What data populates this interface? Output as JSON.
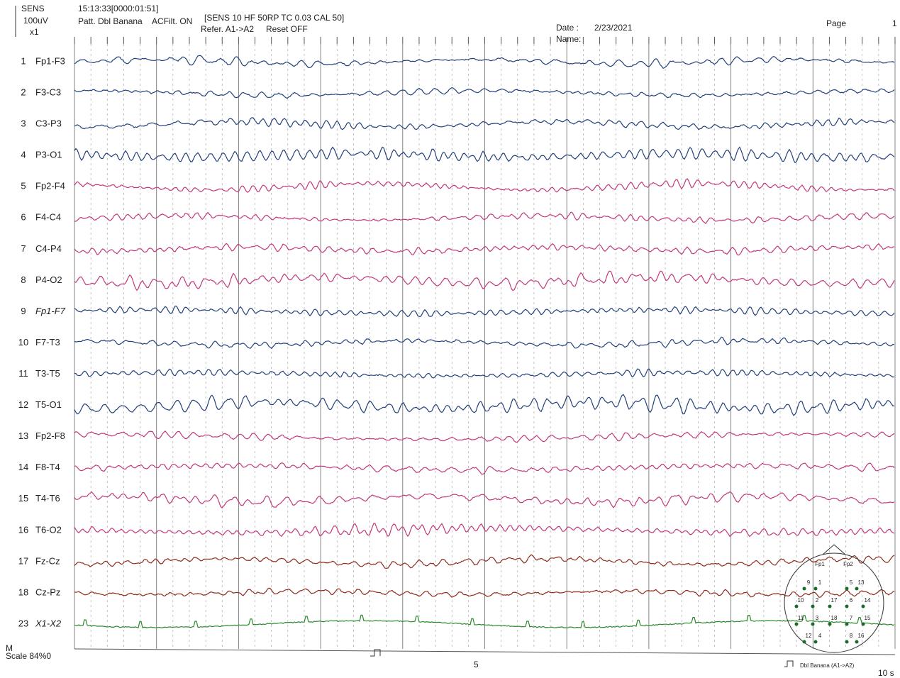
{
  "header": {
    "sens": "SENS",
    "gain": "100uV",
    "zoom": "x1",
    "time": "15:13:33[0000:01:51]",
    "settings": "[SENS 10  HF 50RP  TC 0.03  CAL 50]",
    "pattern": "Patt. Dbl Banana",
    "filter": "ACFilt. ON",
    "reference": "Refer. A1->A2",
    "reset": "Reset OFF",
    "date_label": "Date :",
    "date": "2/23/2021",
    "name_label": "Name:",
    "page_label": "Page",
    "page": 1
  },
  "channels": [
    {
      "number": 1,
      "label": "Fp1-F3",
      "color": "#22407a"
    },
    {
      "number": 2,
      "label": "F3-C3",
      "color": "#22407a"
    },
    {
      "number": 3,
      "label": "C3-P3",
      "color": "#22407a"
    },
    {
      "number": 4,
      "label": "P3-O1",
      "color": "#22407a"
    },
    {
      "number": 5,
      "label": "Fp2-F4",
      "color": "#c2387c"
    },
    {
      "number": 6,
      "label": "F4-C4",
      "color": "#c2387c"
    },
    {
      "number": 7,
      "label": "C4-P4",
      "color": "#c2387c"
    },
    {
      "number": 8,
      "label": "P4-O2",
      "color": "#c2387c"
    },
    {
      "number": 9,
      "label": "Fp1-F7",
      "color": "#22407a"
    },
    {
      "number": 10,
      "label": "F7-T3",
      "color": "#22407a"
    },
    {
      "number": 11,
      "label": "T3-T5",
      "color": "#22407a"
    },
    {
      "number": 12,
      "label": "T5-O1",
      "color": "#22407a"
    },
    {
      "number": 13,
      "label": "Fp2-F8",
      "color": "#c2387c"
    },
    {
      "number": 14,
      "label": "F8-T4",
      "color": "#c2387c"
    },
    {
      "number": 15,
      "label": "T4-T6",
      "color": "#c2387c"
    },
    {
      "number": 16,
      "label": "T6-O2",
      "color": "#c2387c"
    },
    {
      "number": 17,
      "label": "Fz-Cz",
      "color": "#8e2a1c"
    },
    {
      "number": 18,
      "label": "Cz-Pz",
      "color": "#8e2a1c"
    },
    {
      "number": 23,
      "label": "X1-X2",
      "color": "#2b8a2b"
    }
  ],
  "footer": {
    "marker": "M",
    "scale": "Scale 84%0",
    "mid_time": "5",
    "montage": "Dbl Banana (A1->A2)",
    "end_time": "10 s"
  },
  "head": {
    "labels": [
      "Fp1",
      "Fp2"
    ],
    "rows": [
      [
        "9",
        "1",
        "5",
        "13"
      ],
      [
        "10",
        "2",
        "17",
        "6",
        "14"
      ],
      [
        "11",
        "3",
        "18",
        "7",
        "15"
      ],
      [
        "12",
        "4",
        "8",
        "16"
      ]
    ]
  }
}
